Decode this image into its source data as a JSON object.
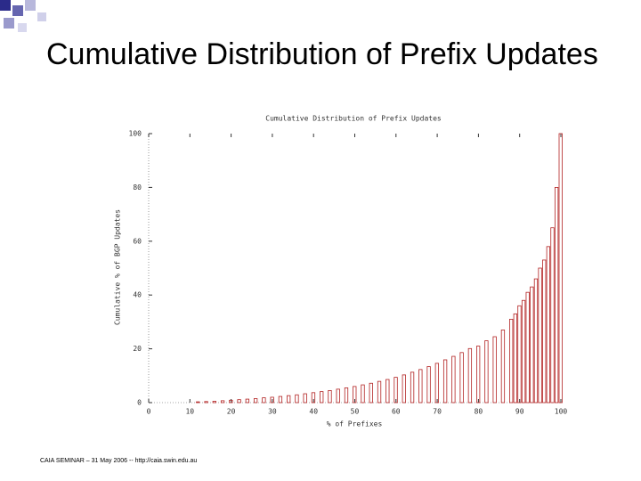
{
  "slide_title": "Cumulative Distribution of Prefix Updates",
  "footer": "CAIA SEMINAR – 31 May 2006 -- http://caia.swin.edu.au",
  "chart_data": {
    "type": "bar",
    "title": "Cumulative Distribution of Prefix Updates",
    "xlabel": "% of Prefixes",
    "ylabel": "Cumulative % of BGP Updates",
    "x": [
      12,
      14,
      16,
      18,
      20,
      22,
      24,
      26,
      28,
      30,
      32,
      34,
      36,
      38,
      40,
      42,
      44,
      46,
      48,
      50,
      52,
      54,
      56,
      58,
      60,
      62,
      64,
      66,
      68,
      70,
      72,
      74,
      76,
      78,
      80,
      82,
      84,
      86,
      88,
      89,
      90,
      91,
      92,
      93,
      94,
      95,
      96,
      97,
      98,
      99,
      100
    ],
    "values": [
      0.3,
      0.4,
      0.5,
      0.7,
      0.9,
      1.1,
      1.3,
      1.5,
      1.8,
      2.0,
      2.3,
      2.6,
      2.9,
      3.3,
      3.7,
      4.1,
      4.5,
      5.0,
      5.5,
      6.0,
      6.6,
      7.2,
      7.9,
      8.6,
      9.4,
      10.3,
      11.3,
      12.3,
      13.4,
      14.6,
      15.9,
      17.2,
      18.6,
      20.1,
      21.0,
      23,
      24.5,
      27,
      31,
      33,
      36,
      38,
      41,
      43,
      46,
      50,
      53,
      58,
      65,
      80,
      100
    ],
    "color": "#b22222",
    "xlim": [
      0,
      100
    ],
    "ylim": [
      0,
      100
    ],
    "xticks": [
      0,
      10,
      20,
      30,
      40,
      50,
      60,
      70,
      80,
      90,
      100
    ],
    "yticks": [
      0,
      20,
      40,
      60,
      80,
      100
    ]
  }
}
